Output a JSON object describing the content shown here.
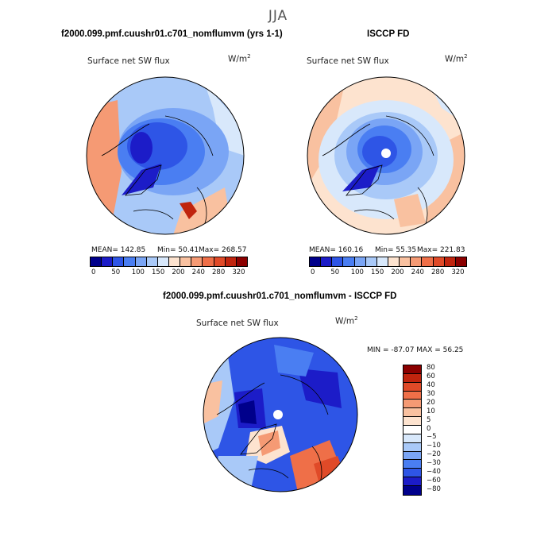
{
  "season": "JJA",
  "panel_left": {
    "title": "f2000.099.pmf.cuushr01.c701_nomflumvm (yrs 1-1)",
    "field": "Surface net SW flux",
    "units": "W/m",
    "units_exp": "2",
    "mean": "MEAN=  142.85",
    "min": "Min=    50.41",
    "max": "Max=  268.57"
  },
  "panel_right": {
    "title": "ISCCP FD",
    "field": "Surface net SW flux",
    "units": "W/m",
    "units_exp": "2",
    "mean": "MEAN=  160.16",
    "min": "Min=    55.35",
    "max": "Max=  221.83"
  },
  "panel_diff": {
    "title": "f2000.099.pmf.cuushr01.c701_nomflumvm - ISCCP FD",
    "field": "Surface net SW flux",
    "units": "W/m",
    "units_exp": "2",
    "minmax": "MIN = -87.07  MAX =   56.25"
  },
  "colors": {
    "flux_scale": [
      "#00008b",
      "#1c1cc8",
      "#2e55e6",
      "#4a7ef2",
      "#7aa5f5",
      "#a9c9f8",
      "#d8e8fb",
      "#fde3cf",
      "#f9c1a0",
      "#f59a74",
      "#ef6f48",
      "#e04a28",
      "#c0240e",
      "#8b0000"
    ],
    "diff_scale": [
      "#8b0000",
      "#c0240e",
      "#e04a28",
      "#ef6f48",
      "#f59a74",
      "#f9c1a0",
      "#fde3cf",
      "#ffffff",
      "#d8e8fb",
      "#a9c9f8",
      "#7aa5f5",
      "#4a7ef2",
      "#2e55e6",
      "#1c1cc8",
      "#00008b"
    ]
  },
  "flux_ticks": [
    "0",
    "50",
    "100",
    "150",
    "200",
    "240",
    "280",
    "320"
  ],
  "diff_ticks": [
    "80",
    "60",
    "40",
    "30",
    "20",
    "10",
    "5",
    "0",
    "−5",
    "−10",
    "−20",
    "−30",
    "−40",
    "−60",
    "−80"
  ]
}
